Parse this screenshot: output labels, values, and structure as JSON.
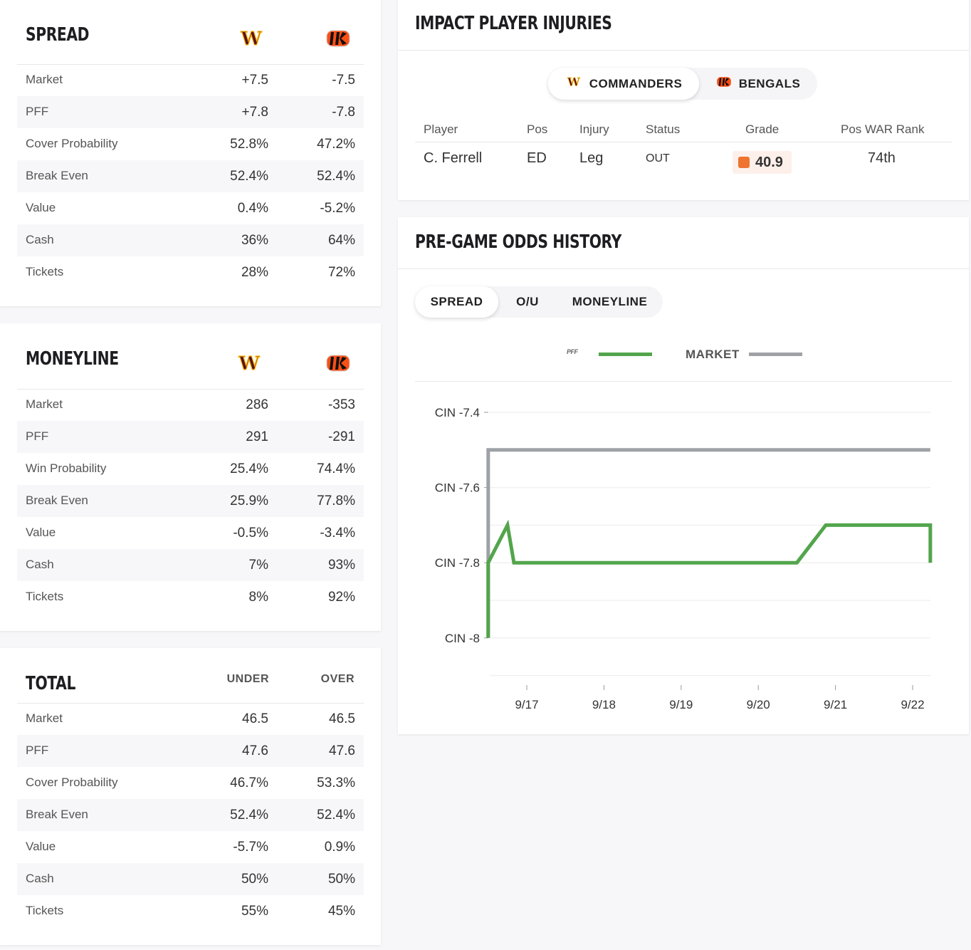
{
  "spread": {
    "title": "SPREAD",
    "rows": [
      {
        "label": "Market",
        "away": "+7.5",
        "home": "-7.5"
      },
      {
        "label": "PFF",
        "away": "+7.8",
        "home": "-7.8"
      },
      {
        "label": "Cover Probability",
        "away": "52.8%",
        "home": "47.2%"
      },
      {
        "label": "Break Even",
        "away": "52.4%",
        "home": "52.4%"
      },
      {
        "label": "Value",
        "away": "0.4%",
        "home": "-5.2%"
      },
      {
        "label": "Cash",
        "away": "36%",
        "home": "64%"
      },
      {
        "label": "Tickets",
        "away": "28%",
        "home": "72%"
      }
    ]
  },
  "moneyline": {
    "title": "MONEYLINE",
    "rows": [
      {
        "label": "Market",
        "away": "286",
        "home": "-353"
      },
      {
        "label": "PFF",
        "away": "291",
        "home": "-291"
      },
      {
        "label": "Win Probability",
        "away": "25.4%",
        "home": "74.4%"
      },
      {
        "label": "Break Even",
        "away": "25.9%",
        "home": "77.8%"
      },
      {
        "label": "Value",
        "away": "-0.5%",
        "home": "-3.4%"
      },
      {
        "label": "Cash",
        "away": "7%",
        "home": "93%"
      },
      {
        "label": "Tickets",
        "away": "8%",
        "home": "92%"
      }
    ]
  },
  "total": {
    "title": "TOTAL",
    "col1": "UNDER",
    "col2": "OVER",
    "rows": [
      {
        "label": "Market",
        "away": "46.5",
        "home": "46.5"
      },
      {
        "label": "PFF",
        "away": "47.6",
        "home": "47.6"
      },
      {
        "label": "Cover Probability",
        "away": "46.7%",
        "home": "53.3%"
      },
      {
        "label": "Break Even",
        "away": "52.4%",
        "home": "52.4%"
      },
      {
        "label": "Value",
        "away": "-5.7%",
        "home": "0.9%"
      },
      {
        "label": "Cash",
        "away": "50%",
        "home": "50%"
      },
      {
        "label": "Tickets",
        "away": "55%",
        "home": "45%"
      }
    ]
  },
  "injuries": {
    "title": "IMPACT PLAYER INJURIES",
    "teams": [
      "COMMANDERS",
      "BENGALS"
    ],
    "active_team": "COMMANDERS",
    "headers": [
      "Player",
      "Pos",
      "Injury",
      "Status",
      "Grade",
      "Pos WAR Rank"
    ],
    "rows": [
      {
        "player": "C. Ferrell",
        "pos": "ED",
        "injury": "Leg",
        "status": "OUT",
        "grade": "40.9",
        "rank": "74th",
        "grade_color": "#ee7430"
      }
    ]
  },
  "odds_history": {
    "title": "PRE-GAME ODDS HISTORY",
    "tabs": [
      "SPREAD",
      "O/U",
      "MONEYLINE"
    ],
    "active_tab": "SPREAD"
  },
  "chart_data": {
    "type": "line",
    "legend": "top-center",
    "grid": true,
    "y_ticks": [
      "CIN -7.4",
      "CIN -7.6",
      "CIN -7.8",
      "CIN -8"
    ],
    "ylim": [
      -8.1,
      -7.4
    ],
    "x_ticks": [
      "9/17",
      "9/18",
      "9/19",
      "9/20",
      "9/21",
      "9/22"
    ],
    "series": [
      {
        "name": "PFF",
        "color": "#52a54b",
        "points": [
          [
            "9/16 12:00",
            -8.0
          ],
          [
            "9/16 12:00",
            -7.8
          ],
          [
            "9/16 18:00",
            -7.7
          ],
          [
            "9/16 20:00",
            -7.8
          ],
          [
            "9/20 12:00",
            -7.8
          ],
          [
            "9/20 21:00",
            -7.7
          ],
          [
            "9/22 05:30",
            -7.7
          ],
          [
            "9/22 05:30",
            -7.8
          ]
        ]
      },
      {
        "name": "MARKET",
        "color": "#9ea1a5",
        "points": [
          [
            "9/16 12:00",
            -8.0
          ],
          [
            "9/16 12:00",
            -7.5
          ],
          [
            "9/22 05:30",
            -7.5
          ]
        ]
      }
    ]
  }
}
